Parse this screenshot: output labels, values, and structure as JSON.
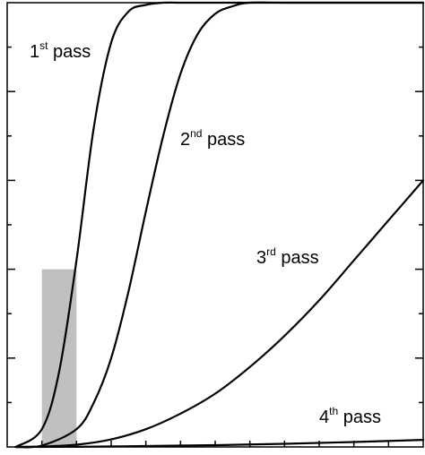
{
  "chart_data": {
    "type": "line",
    "title": "",
    "xlabel": "",
    "ylabel": "",
    "xlim": [
      0,
      12
    ],
    "ylim": [
      0,
      1
    ],
    "x_tick_count": 12,
    "y_tick_count": 10,
    "highlight_band": {
      "x": [
        1,
        2
      ],
      "y": [
        0,
        0.4
      ],
      "color": "#c0c0c0"
    },
    "series": [
      {
        "name": "1st pass",
        "label_base": "1",
        "label_sup": "st",
        "label_rest": " pass",
        "x": [
          0.25,
          1,
          1.5,
          2,
          2.5,
          3,
          3.5,
          4,
          4.5,
          5,
          6,
          8,
          12
        ],
        "y": [
          0,
          0.04,
          0.17,
          0.42,
          0.72,
          0.91,
          0.98,
          0.995,
          1.0,
          1.0,
          1.0,
          1.0,
          1.0
        ]
      },
      {
        "name": "2nd pass",
        "label_base": "2",
        "label_sup": "nd",
        "label_rest": " pass",
        "x": [
          0.25,
          1,
          2,
          2.5,
          3,
          3.5,
          4,
          4.5,
          5,
          5.5,
          6,
          6.5,
          7,
          8,
          10,
          12
        ],
        "y": [
          0,
          0.003,
          0.04,
          0.1,
          0.2,
          0.35,
          0.53,
          0.7,
          0.84,
          0.93,
          0.975,
          0.992,
          1.0,
          1.0,
          1.0,
          1.0
        ]
      },
      {
        "name": "3rd pass",
        "label_base": "3",
        "label_sup": "rd",
        "label_rest": " pass",
        "x": [
          0.25,
          1,
          2,
          3,
          4,
          5,
          6,
          7,
          8,
          9,
          10,
          11,
          12
        ],
        "y": [
          0,
          0.001,
          0.005,
          0.017,
          0.04,
          0.075,
          0.12,
          0.18,
          0.25,
          0.33,
          0.42,
          0.51,
          0.6
        ]
      },
      {
        "name": "4th pass",
        "label_base": "4",
        "label_sup": "th",
        "label_rest": " pass",
        "x": [
          0.25,
          2,
          4,
          6,
          8,
          10,
          12
        ],
        "y": [
          0,
          0.0005,
          0.002,
          0.004,
          0.007,
          0.011,
          0.016
        ]
      }
    ]
  }
}
